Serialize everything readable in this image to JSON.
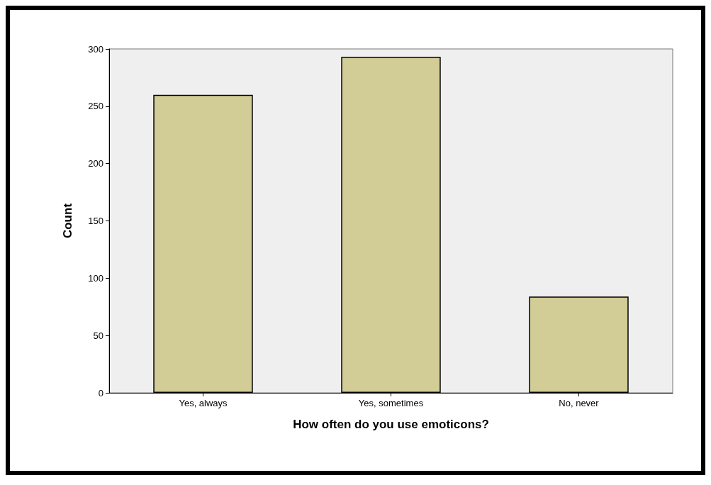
{
  "chart_data": {
    "type": "bar",
    "xlabel": "How often do you use emoticons?",
    "ylabel": "Count",
    "categories": [
      "Yes, always",
      "Yes, sometimes",
      "No, never"
    ],
    "values": [
      260,
      293,
      84
    ],
    "color": "#d2cc96",
    "ylim": [
      0,
      300
    ],
    "yticks": [
      0,
      50,
      100,
      150,
      200,
      250,
      300
    ],
    "grid": false
  }
}
